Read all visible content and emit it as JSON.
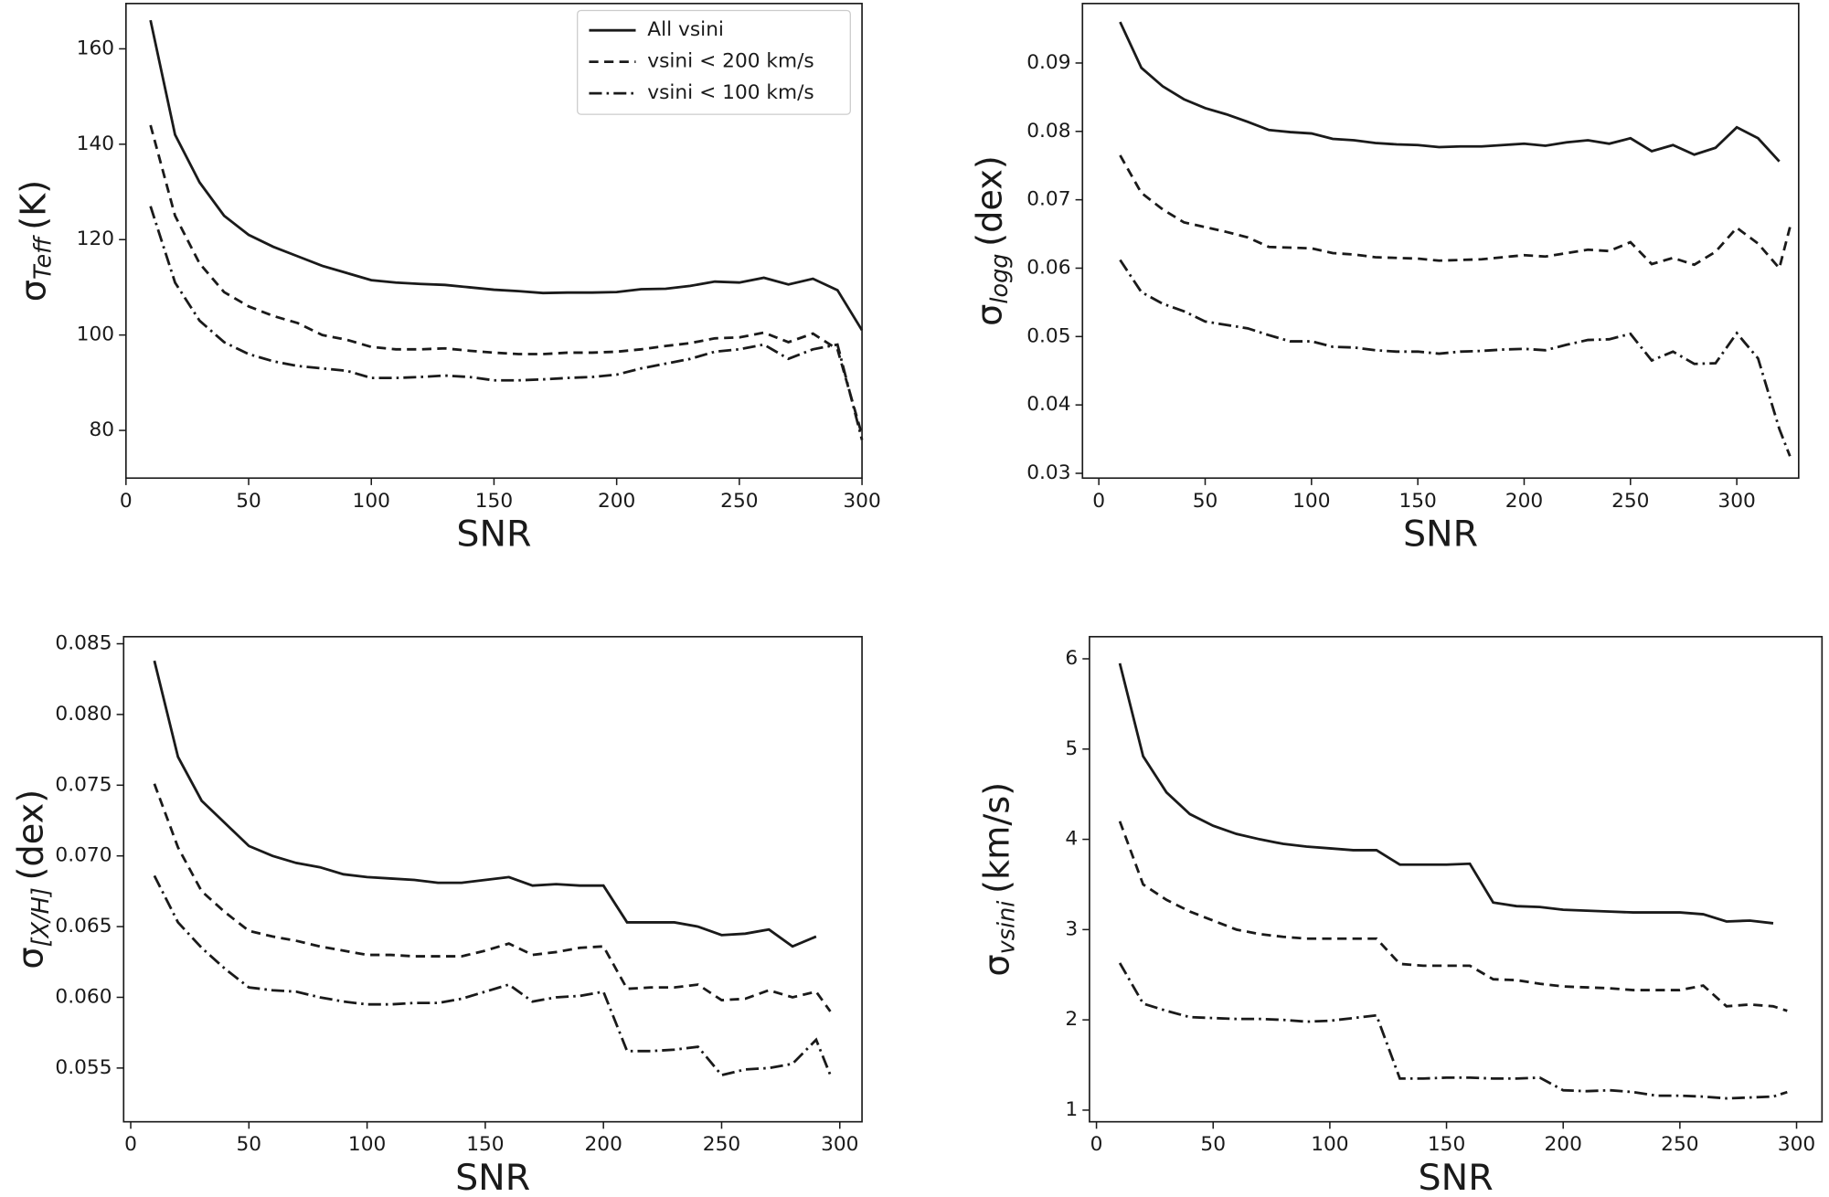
{
  "chart_data": [
    {
      "type": "line",
      "xlabel": "SNR",
      "ylabel": {
        "symbol": "σ",
        "subscript": "Teff",
        "unit": "(K)"
      },
      "xlim": [
        0,
        300
      ],
      "ylim": [
        70,
        169.5
      ],
      "xticks": [
        0,
        50,
        100,
        150,
        200,
        250,
        300
      ],
      "yticks": [
        80,
        100,
        120,
        140,
        160
      ],
      "legend": "upper right",
      "x": [
        10,
        20,
        30,
        40,
        50,
        60,
        70,
        80,
        90,
        100,
        110,
        120,
        130,
        140,
        150,
        160,
        170,
        180,
        190,
        200,
        210,
        220,
        230,
        240,
        250,
        260,
        270,
        280,
        290,
        300
      ],
      "series": [
        {
          "name": "All vsini",
          "color": "#1a1a1a",
          "dash": "solid",
          "values": [
            166,
            142,
            132,
            125,
            121,
            118.5,
            116.5,
            114.5,
            113,
            111.5,
            111,
            110.7,
            110.5,
            110,
            109.5,
            109.2,
            108.8,
            108.9,
            108.9,
            109,
            109.6,
            109.7,
            110.3,
            111.2,
            111,
            112,
            110.6,
            111.8,
            109.4,
            101
          ]
        },
        {
          "name": "vsini < 200 km/s",
          "color": "#1a1a1a",
          "dash": "dashed",
          "values": [
            144,
            125,
            115,
            109,
            106,
            104,
            102.5,
            100,
            99,
            97.5,
            97,
            97,
            97.2,
            96.7,
            96.3,
            96,
            96,
            96.3,
            96.3,
            96.5,
            97,
            97.7,
            98.3,
            99.3,
            99.5,
            100.5,
            98.5,
            100.3,
            97,
            79
          ]
        },
        {
          "name": "vsini < 100 km/s",
          "color": "#1a1a1a",
          "dash": "dashdot",
          "values": [
            127,
            111,
            103,
            98.5,
            96,
            94.5,
            93.5,
            93,
            92.5,
            91,
            91,
            91.2,
            91.5,
            91.2,
            90.5,
            90.5,
            90.7,
            91,
            91.2,
            91.7,
            93,
            94,
            95,
            96.5,
            97,
            98,
            95,
            97,
            98,
            78
          ]
        }
      ]
    },
    {
      "type": "line",
      "xlabel": "SNR",
      "ylabel": {
        "symbol": "σ",
        "subscript": "logg",
        "unit": "(dex)"
      },
      "xlim": [
        -7.7,
        329.1
      ],
      "ylim": [
        0.0293,
        0.0987
      ],
      "xticks": [
        0,
        50,
        100,
        150,
        200,
        250,
        300
      ],
      "yticks": [
        0.03,
        0.04,
        0.05,
        0.06,
        0.07,
        0.08,
        0.09
      ],
      "x": [
        10,
        20,
        30,
        40,
        50,
        60,
        70,
        80,
        90,
        100,
        110,
        120,
        130,
        140,
        150,
        160,
        170,
        180,
        190,
        200,
        210,
        220,
        230,
        240,
        250,
        260,
        270,
        280,
        290,
        300,
        310,
        320,
        325
      ],
      "series": [
        {
          "color": "#1a1a1a",
          "dash": "solid",
          "values": [
            0.096,
            0.0893,
            0.0866,
            0.0847,
            0.0834,
            0.0825,
            0.0814,
            0.0802,
            0.0799,
            0.0797,
            0.0789,
            0.0787,
            0.0783,
            0.0781,
            0.078,
            0.0777,
            0.0778,
            0.0778,
            0.078,
            0.0782,
            0.0779,
            0.0784,
            0.0787,
            0.0782,
            0.079,
            0.0771,
            0.078,
            0.0766,
            0.0776,
            0.0806,
            0.079,
            0.0756,
            null
          ]
        },
        {
          "color": "#1a1a1a",
          "dash": "dashed",
          "values": [
            0.0765,
            0.071,
            0.0686,
            0.0667,
            0.066,
            0.0653,
            0.0645,
            0.0631,
            0.063,
            0.0629,
            0.0622,
            0.062,
            0.0616,
            0.0615,
            0.0614,
            0.0611,
            0.0612,
            0.0613,
            0.0616,
            0.0619,
            0.0617,
            0.0622,
            0.0627,
            0.0625,
            0.0638,
            0.0606,
            0.0615,
            0.0605,
            0.0624,
            0.0659,
            0.0636,
            0.06,
            0.066
          ]
        },
        {
          "color": "#1a1a1a",
          "dash": "dashdot",
          "values": [
            0.0612,
            0.0565,
            0.0548,
            0.0537,
            0.0522,
            0.0517,
            0.0512,
            0.0502,
            0.0493,
            0.0493,
            0.0485,
            0.0484,
            0.048,
            0.0478,
            0.0478,
            0.0475,
            0.0478,
            0.0479,
            0.0481,
            0.0482,
            0.048,
            0.0488,
            0.0495,
            0.0496,
            0.0504,
            0.0465,
            0.0478,
            0.046,
            0.0461,
            0.0505,
            0.0468,
            0.0365,
            0.0325
          ]
        }
      ]
    },
    {
      "type": "line",
      "xlabel": "SNR",
      "ylabel": {
        "symbol": "σ",
        "subscript": "[X/H]",
        "unit": "(dex)"
      },
      "xlim": [
        -3,
        309.4
      ],
      "ylim": [
        0.0512,
        0.0855
      ],
      "xticks": [
        0,
        50,
        100,
        150,
        200,
        250,
        300
      ],
      "yticks": [
        0.055,
        {
          "value": 0.06,
          "label": "0.060"
        },
        0.065,
        {
          "value": 0.07,
          "label": "0.070"
        },
        0.075,
        {
          "value": 0.08,
          "label": "0.080"
        },
        0.085
      ],
      "x": [
        10,
        20,
        30,
        40,
        50,
        60,
        70,
        80,
        90,
        100,
        110,
        120,
        130,
        140,
        150,
        160,
        170,
        180,
        190,
        200,
        210,
        220,
        230,
        240,
        250,
        260,
        270,
        280,
        290,
        296
      ],
      "series": [
        {
          "color": "#1a1a1a",
          "dash": "solid",
          "values": [
            0.0838,
            0.077,
            0.0739,
            0.0723,
            0.0707,
            0.07,
            0.0695,
            0.0692,
            0.0687,
            0.0685,
            0.0684,
            0.0683,
            0.0681,
            0.0681,
            0.0683,
            0.0685,
            0.0679,
            0.068,
            0.0679,
            0.0679,
            0.0653,
            0.0653,
            0.0653,
            0.065,
            0.0644,
            0.0645,
            0.0648,
            0.0636,
            0.0643,
            null
          ]
        },
        {
          "color": "#1a1a1a",
          "dash": "dashed",
          "values": [
            0.0751,
            0.0706,
            0.0675,
            0.066,
            0.0647,
            0.0643,
            0.064,
            0.0636,
            0.0633,
            0.063,
            0.063,
            0.0629,
            0.0629,
            0.0629,
            0.0633,
            0.0638,
            0.063,
            0.0632,
            0.0635,
            0.0636,
            0.0606,
            0.0607,
            0.0607,
            0.0609,
            0.0598,
            0.0599,
            0.0605,
            0.06,
            0.0604,
            0.059
          ]
        },
        {
          "color": "#1a1a1a",
          "dash": "dashdot",
          "values": [
            0.0686,
            0.0653,
            0.0635,
            0.062,
            0.0607,
            0.0605,
            0.0604,
            0.06,
            0.0597,
            0.0595,
            0.0595,
            0.0596,
            0.0596,
            0.0599,
            0.0604,
            0.0609,
            0.0597,
            0.06,
            0.0601,
            0.0604,
            0.0562,
            0.0562,
            0.0563,
            0.0565,
            0.0545,
            0.0549,
            0.055,
            0.0553,
            0.057,
            0.0545
          ]
        }
      ]
    },
    {
      "type": "line",
      "xlabel": "SNR",
      "ylabel": {
        "symbol": "σ",
        "subscript": "vsini",
        "unit": "(km/s)"
      },
      "xlim": [
        -3,
        310.9
      ],
      "ylim": [
        0.871,
        6.245
      ],
      "xticks": [
        0,
        50,
        100,
        150,
        200,
        250,
        300
      ],
      "yticks": [
        1,
        2,
        3,
        4,
        5,
        6
      ],
      "x": [
        10,
        20,
        30,
        40,
        50,
        60,
        70,
        80,
        90,
        100,
        110,
        120,
        130,
        140,
        150,
        160,
        170,
        180,
        190,
        200,
        210,
        220,
        230,
        240,
        250,
        260,
        270,
        280,
        290,
        296
      ],
      "series": [
        {
          "color": "#1a1a1a",
          "dash": "solid",
          "values": [
            5.95,
            4.92,
            4.52,
            4.28,
            4.15,
            4.06,
            4.0,
            3.95,
            3.92,
            3.9,
            3.88,
            3.88,
            3.72,
            3.72,
            3.72,
            3.73,
            3.3,
            3.26,
            3.25,
            3.22,
            3.21,
            3.2,
            3.19,
            3.19,
            3.19,
            3.17,
            3.09,
            3.1,
            3.07,
            null
          ]
        },
        {
          "color": "#1a1a1a",
          "dash": "dashed",
          "values": [
            4.2,
            3.5,
            3.33,
            3.2,
            3.1,
            3.0,
            2.95,
            2.92,
            2.9,
            2.9,
            2.9,
            2.9,
            2.62,
            2.6,
            2.6,
            2.6,
            2.45,
            2.44,
            2.4,
            2.37,
            2.36,
            2.35,
            2.33,
            2.33,
            2.33,
            2.38,
            2.15,
            2.17,
            2.15,
            2.1
          ]
        },
        {
          "color": "#1a1a1a",
          "dash": "dashdot",
          "values": [
            2.63,
            2.18,
            2.1,
            2.03,
            2.02,
            2.01,
            2.01,
            2.0,
            1.98,
            1.99,
            2.02,
            2.05,
            1.35,
            1.35,
            1.36,
            1.36,
            1.35,
            1.35,
            1.36,
            1.22,
            1.21,
            1.22,
            1.2,
            1.16,
            1.16,
            1.15,
            1.13,
            1.14,
            1.15,
            1.2
          ]
        }
      ]
    }
  ]
}
